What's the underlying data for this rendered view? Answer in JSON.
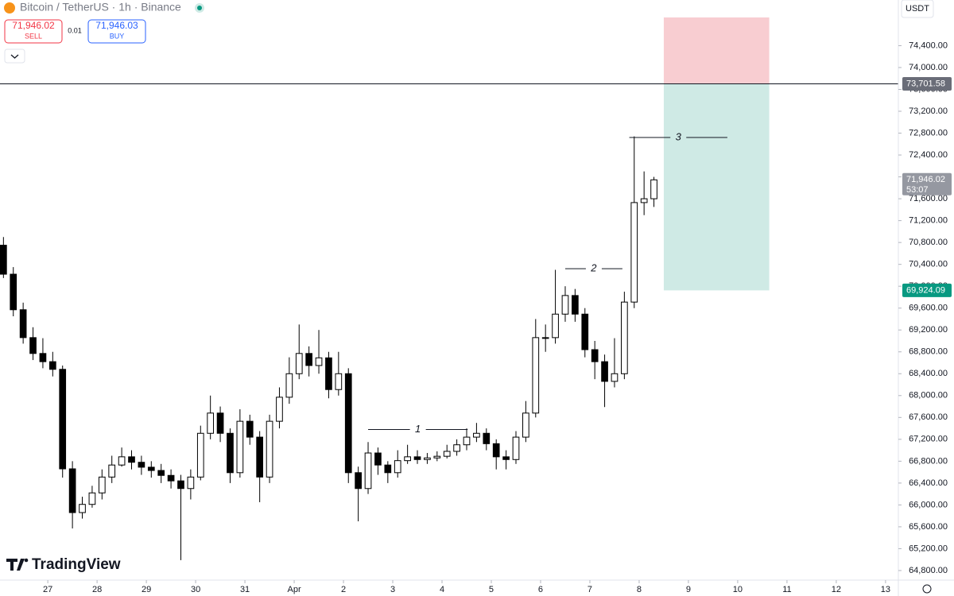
{
  "header": {
    "symbol": "Bitcoin / TetherUS · 1h · Binance",
    "sell_price": "71,946.02",
    "sell": "SELL",
    "spread": "0.01",
    "buy_price": "71,946.03",
    "buy": "BUY",
    "currency": "USDT",
    "logo": "TradingView"
  },
  "chart_data": {
    "type": "candlestick",
    "up_color": "#ffffff",
    "down_color": "#000000",
    "wick_color": "#000000",
    "xlim": [
      0.03,
      18.26
    ],
    "ylim": [
      64625,
      75235
    ],
    "xticks": [
      {
        "value": 1,
        "label": "27"
      },
      {
        "value": 2,
        "label": "28"
      },
      {
        "value": 3,
        "label": "29"
      },
      {
        "value": 4,
        "label": "30"
      },
      {
        "value": 5,
        "label": "31"
      },
      {
        "value": 6,
        "label": "Apr"
      },
      {
        "value": 7,
        "label": "2"
      },
      {
        "value": 8,
        "label": "3"
      },
      {
        "value": 9,
        "label": "4"
      },
      {
        "value": 10,
        "label": "5"
      },
      {
        "value": 11,
        "label": "6"
      },
      {
        "value": 12,
        "label": "7"
      },
      {
        "value": 13,
        "label": "8"
      },
      {
        "value": 14,
        "label": "9"
      },
      {
        "value": 15,
        "label": "10"
      },
      {
        "value": 16,
        "label": "11"
      },
      {
        "value": 17,
        "label": "12"
      },
      {
        "value": 18,
        "label": "13"
      }
    ],
    "yticks": [
      {
        "value": 64800,
        "label": "64,800.00"
      },
      {
        "value": 65200,
        "label": "65,200.00"
      },
      {
        "value": 65600,
        "label": "65,600.00"
      },
      {
        "value": 66000,
        "label": "66,000.00"
      },
      {
        "value": 66400,
        "label": "66,400.00"
      },
      {
        "value": 66800,
        "label": "66,800.00"
      },
      {
        "value": 67200,
        "label": "67,200.00"
      },
      {
        "value": 67600,
        "label": "67,600.00"
      },
      {
        "value": 68000,
        "label": "68,000.00"
      },
      {
        "value": 68400,
        "label": "68,400.00"
      },
      {
        "value": 68800,
        "label": "68,800.00"
      },
      {
        "value": 69200,
        "label": "69,200.00"
      },
      {
        "value": 69600,
        "label": "69,600.00"
      },
      {
        "value": 70000,
        "label": "70,000.00"
      },
      {
        "value": 70400,
        "label": "70,400.00"
      },
      {
        "value": 70800,
        "label": "70,800.00"
      },
      {
        "value": 71200,
        "label": "71,200.00"
      },
      {
        "value": 71600,
        "label": "71,600.00"
      },
      {
        "value": 72000,
        "label": "72,000.00"
      },
      {
        "value": 72400,
        "label": "72,400.00"
      },
      {
        "value": 72800,
        "label": "72,800.00"
      },
      {
        "value": 73200,
        "label": "73,200.00"
      },
      {
        "value": 73600,
        "label": "73,600.00"
      },
      {
        "value": 74000,
        "label": "74,000.00"
      },
      {
        "value": 74400,
        "label": "74,400.00"
      }
    ],
    "series": {
      "x": [
        0.1,
        0.3,
        0.5,
        0.7,
        0.9,
        1.1,
        1.3,
        1.5,
        1.7,
        1.9,
        2.1,
        2.3,
        2.5,
        2.7,
        2.9,
        3.1,
        3.3,
        3.5,
        3.7,
        3.9,
        4.1,
        4.3,
        4.5,
        4.7,
        4.9,
        5.1,
        5.3,
        5.5,
        5.7,
        5.9,
        6.1,
        6.3,
        6.5,
        6.7,
        6.9,
        7.1,
        7.3,
        7.5,
        7.7,
        7.9,
        8.1,
        8.3,
        8.5,
        8.7,
        8.9,
        9.1,
        9.3,
        9.5,
        9.7,
        9.9,
        10.1,
        10.3,
        10.5,
        10.7,
        10.9,
        11.1,
        11.3,
        11.5,
        11.7,
        11.9,
        12.1,
        12.3,
        12.5,
        12.7,
        12.9,
        13.1,
        13.3
      ],
      "open": [
        70750,
        70220,
        69570,
        69060,
        68770,
        68620,
        68480,
        66660,
        65860,
        66010,
        66220,
        66510,
        66730,
        66880,
        66780,
        66690,
        66630,
        66540,
        66440,
        66300,
        66510,
        67310,
        67680,
        67310,
        66590,
        67530,
        67240,
        66510,
        67530,
        67970,
        68400,
        68770,
        68550,
        68690,
        68110,
        68400,
        66590,
        66300,
        66950,
        66730,
        66590,
        66810,
        66880,
        66830,
        66860,
        66890,
        66980,
        67100,
        67240,
        67310,
        67120,
        66880,
        66830,
        67240,
        67680,
        69060,
        69060,
        69490,
        69830,
        69490,
        68840,
        68620,
        68260,
        68400,
        69710,
        71530,
        71600
      ],
      "high": [
        70900,
        70350,
        69700,
        69250,
        69050,
        68800,
        68550,
        66800,
        66150,
        66350,
        66650,
        66900,
        67050,
        67000,
        66900,
        66800,
        66750,
        66650,
        66550,
        66650,
        67450,
        68000,
        67800,
        67400,
        67750,
        67650,
        67350,
        67650,
        68150,
        68700,
        69300,
        68900,
        69200,
        68800,
        68800,
        68500,
        66700,
        67150,
        67050,
        66800,
        67000,
        67100,
        67000,
        66950,
        66980,
        67100,
        67200,
        67400,
        67500,
        67400,
        67200,
        67000,
        67350,
        67900,
        69400,
        69300,
        70300,
        70000,
        69950,
        69600,
        69000,
        68750,
        69050,
        69900,
        72740,
        72100,
        72000
      ],
      "low": [
        70150,
        69450,
        68950,
        68650,
        68500,
        68350,
        66500,
        65570,
        65750,
        65950,
        66100,
        66400,
        66700,
        66650,
        66550,
        66500,
        66400,
        66300,
        64990,
        66100,
        66450,
        67200,
        67150,
        66400,
        66500,
        67100,
        66050,
        66400,
        67400,
        67850,
        68300,
        68350,
        68400,
        67950,
        68000,
        66400,
        65700,
        66200,
        66550,
        66400,
        66500,
        66750,
        66750,
        66750,
        66800,
        66850,
        66900,
        67000,
        67150,
        67000,
        66650,
        66650,
        66750,
        67150,
        67600,
        68800,
        68950,
        69350,
        69350,
        68700,
        68300,
        67790,
        68150,
        68300,
        69600,
        71300,
        71450
      ],
      "close": [
        70220,
        69570,
        69060,
        68770,
        68620,
        68480,
        66660,
        65860,
        66010,
        66220,
        66510,
        66730,
        66880,
        66780,
        66690,
        66630,
        66540,
        66440,
        66300,
        66510,
        67310,
        67680,
        67310,
        66590,
        67530,
        67240,
        66510,
        67530,
        67970,
        68400,
        68770,
        68550,
        68690,
        68110,
        68400,
        66590,
        66300,
        66950,
        66730,
        66590,
        66810,
        66880,
        66830,
        66860,
        66890,
        66980,
        67100,
        67240,
        67310,
        67120,
        66880,
        66830,
        67240,
        67680,
        69060,
        69060,
        69490,
        69830,
        69490,
        68840,
        68620,
        68260,
        68400,
        69710,
        71530,
        71600,
        71946.02
      ]
    },
    "annotations": [
      {
        "label": "1",
        "price": 67380,
        "x": [
          7.5,
          9.52
        ]
      },
      {
        "label": "2",
        "price": 70320,
        "x": [
          11.5,
          12.66
        ]
      },
      {
        "label": "3",
        "price": 72720,
        "x": [
          12.8,
          14.79
        ]
      }
    ],
    "position": {
      "stop": 74916,
      "entry": 73701.58,
      "target": 69924.09,
      "x": [
        13.5,
        15.64
      ],
      "stop_color": "#f8cdd1",
      "target_color": "#cfeae5"
    },
    "price_labels": [
      {
        "value": 73701.58,
        "label": "73,701.58",
        "color": "#6a6d78"
      },
      {
        "value": 71946.02,
        "label": "71,946.02",
        "sub": "53:07",
        "color": "#9598a1"
      },
      {
        "value": 69924.09,
        "label": "69,924.09",
        "color": "#089981"
      }
    ]
  }
}
